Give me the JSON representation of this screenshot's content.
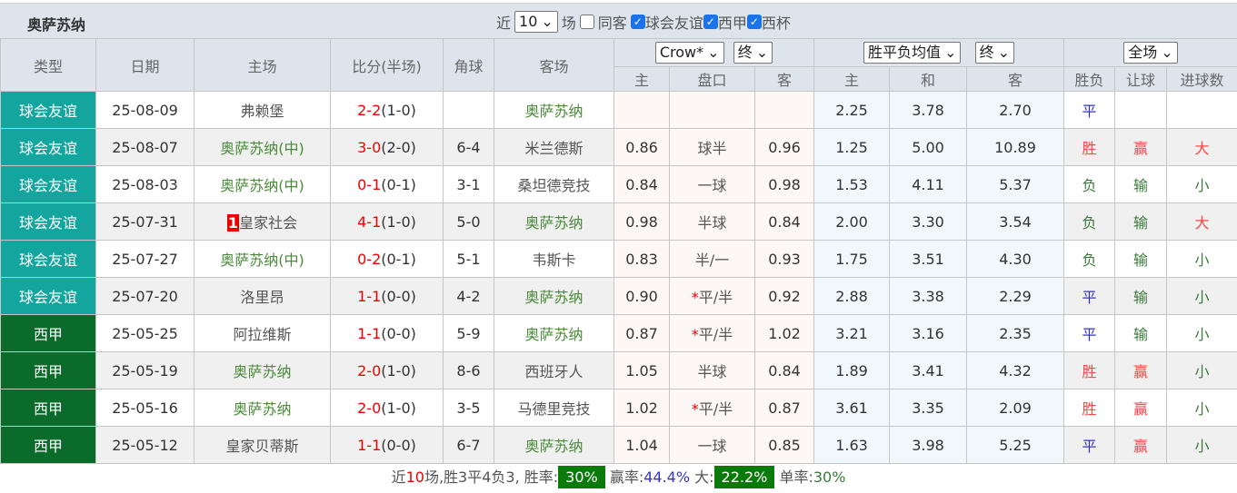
{
  "title": "奥萨苏纳",
  "filters": {
    "near": "近",
    "count": "10",
    "unit": "场",
    "same_home": {
      "label": "同客",
      "checked": false
    },
    "leagues": [
      {
        "label": "球会友谊",
        "checked": true
      },
      {
        "label": "西甲",
        "checked": true
      },
      {
        "label": "西杯",
        "checked": true
      }
    ]
  },
  "headers": {
    "type": "类型",
    "date": "日期",
    "home": "主场",
    "score": "比分(半场)",
    "corner": "角球",
    "away": "客场",
    "company": "Crow*",
    "ah_stage": "终",
    "eu_kind": "胜平负均值",
    "eu_stage": "终",
    "period": "全场",
    "sub": [
      "主",
      "盘口",
      "客",
      "主",
      "和",
      "客",
      "胜负",
      "让球",
      "进球数"
    ]
  },
  "rows": [
    {
      "type": "球会友谊",
      "league": "friendly",
      "date": "25-08-09",
      "home": "弗赖堡",
      "home_hl": false,
      "score": "2-2",
      "half": "(1-0)",
      "corner": "",
      "away": "奥萨苏纳",
      "away_hl": true,
      "ah_h": "",
      "ah_line": "",
      "ah_a": "",
      "eu_h": "2.25",
      "eu_d": "3.78",
      "eu_a": "2.70",
      "wdl": "平",
      "ah_res": "",
      "ou": ""
    },
    {
      "type": "球会友谊",
      "league": "friendly",
      "date": "25-08-07",
      "home": "奥萨苏纳(中)",
      "home_hl": true,
      "score": "3-0",
      "half": "(2-0)",
      "corner": "6-4",
      "away": "米兰德斯",
      "away_hl": false,
      "ah_h": "0.86",
      "ah_line": "球半",
      "ah_a": "0.96",
      "eu_h": "1.25",
      "eu_d": "5.00",
      "eu_a": "10.89",
      "wdl": "胜",
      "ah_res": "赢",
      "ou": "大"
    },
    {
      "type": "球会友谊",
      "league": "friendly",
      "date": "25-08-03",
      "home": "奥萨苏纳(中)",
      "home_hl": true,
      "score": "0-1",
      "half": "(0-1)",
      "corner": "3-1",
      "away": "桑坦德竞技",
      "away_hl": false,
      "ah_h": "0.84",
      "ah_line": "一球",
      "ah_a": "0.98",
      "eu_h": "1.53",
      "eu_d": "4.11",
      "eu_a": "5.37",
      "wdl": "负",
      "ah_res": "输",
      "ou": "小"
    },
    {
      "type": "球会友谊",
      "league": "friendly",
      "date": "25-07-31",
      "home": "皇家社会",
      "home_badge": "1",
      "home_hl": false,
      "score": "4-1",
      "half": "(1-0)",
      "corner": "5-0",
      "away": "奥萨苏纳",
      "away_hl": true,
      "ah_h": "0.98",
      "ah_line": "半球",
      "ah_a": "0.84",
      "eu_h": "2.00",
      "eu_d": "3.30",
      "eu_a": "3.54",
      "wdl": "负",
      "ah_res": "输",
      "ou": "大"
    },
    {
      "type": "球会友谊",
      "league": "friendly",
      "date": "25-07-27",
      "home": "奥萨苏纳(中)",
      "home_hl": true,
      "score": "0-2",
      "half": "(0-1)",
      "corner": "5-1",
      "away": "韦斯卡",
      "away_hl": false,
      "ah_h": "0.83",
      "ah_line": "半/一",
      "ah_a": "0.93",
      "eu_h": "1.75",
      "eu_d": "3.51",
      "eu_a": "4.30",
      "wdl": "负",
      "ah_res": "输",
      "ou": "小"
    },
    {
      "type": "球会友谊",
      "league": "friendly",
      "date": "25-07-20",
      "home": "洛里昂",
      "home_hl": false,
      "score": "1-1",
      "half": "(0-0)",
      "corner": "4-2",
      "away": "奥萨苏纳",
      "away_hl": true,
      "ah_h": "0.90",
      "ah_star": "*",
      "ah_line": "平/半",
      "ah_a": "0.92",
      "eu_h": "2.88",
      "eu_d": "3.38",
      "eu_a": "2.29",
      "wdl": "平",
      "ah_res": "输",
      "ou": "小"
    },
    {
      "type": "西甲",
      "league": "laliga",
      "date": "25-05-25",
      "home": "阿拉维斯",
      "home_hl": false,
      "score": "1-1",
      "half": "(0-0)",
      "corner": "5-9",
      "away": "奥萨苏纳",
      "away_hl": true,
      "ah_h": "0.87",
      "ah_star": "*",
      "ah_line": "平/半",
      "ah_a": "1.02",
      "eu_h": "3.21",
      "eu_d": "3.16",
      "eu_a": "2.35",
      "wdl": "平",
      "ah_res": "输",
      "ou": "小"
    },
    {
      "type": "西甲",
      "league": "laliga",
      "date": "25-05-19",
      "home": "奥萨苏纳",
      "home_hl": true,
      "score": "2-0",
      "half": "(1-0)",
      "corner": "8-6",
      "away": "西班牙人",
      "away_hl": false,
      "ah_h": "1.05",
      "ah_line": "半球",
      "ah_a": "0.84",
      "eu_h": "1.89",
      "eu_d": "3.41",
      "eu_a": "4.32",
      "wdl": "胜",
      "ah_res": "赢",
      "ou": "小"
    },
    {
      "type": "西甲",
      "league": "laliga",
      "date": "25-05-16",
      "home": "奥萨苏纳",
      "home_hl": true,
      "score": "2-0",
      "half": "(1-0)",
      "corner": "3-5",
      "away": "马德里竞技",
      "away_hl": false,
      "ah_h": "1.02",
      "ah_star": "*",
      "ah_line": "平/半",
      "ah_a": "0.87",
      "eu_h": "3.61",
      "eu_d": "3.35",
      "eu_a": "2.09",
      "wdl": "胜",
      "ah_res": "赢",
      "ou": "小"
    },
    {
      "type": "西甲",
      "league": "laliga",
      "date": "25-05-12",
      "home": "皇家贝蒂斯",
      "home_hl": false,
      "score": "1-1",
      "half": "(0-0)",
      "corner": "6-7",
      "away": "奥萨苏纳",
      "away_hl": true,
      "ah_h": "1.04",
      "ah_line": "一球",
      "ah_a": "0.85",
      "eu_h": "1.63",
      "eu_d": "3.98",
      "eu_a": "5.25",
      "wdl": "平",
      "ah_res": "赢",
      "ou": "小"
    }
  ],
  "footer": {
    "p1": "近",
    "n": "10",
    "p2": "场,胜3平4负3, 胜率:",
    "win_rate": "30%",
    "p3": " 赢率:",
    "ah_rate": "44.4%",
    "p4": " 大:",
    "over_rate": "22.2%",
    "p5": " 单率:",
    "odd_rate": "30%"
  },
  "colors": {
    "friendly": "#13a59e",
    "laliga": "#0a6b2b",
    "win": "#f44",
    "draw": "#33c",
    "loss": "#3c7a3c"
  }
}
